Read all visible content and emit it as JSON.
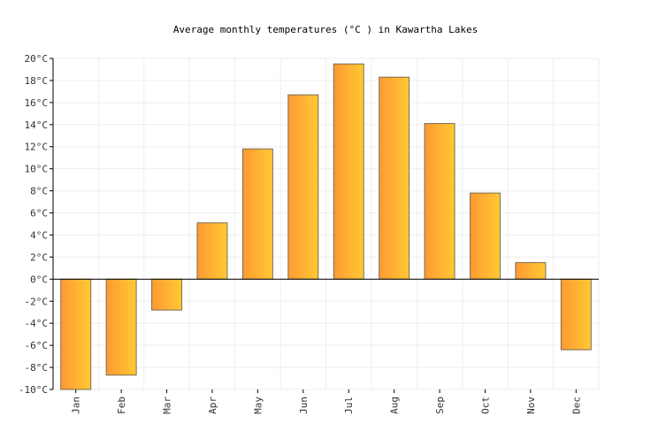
{
  "chart_data": {
    "type": "bar",
    "title": "Average monthly temperatures (°C ) in Kawartha Lakes",
    "xlabel": "",
    "ylabel": "",
    "categories": [
      "Jan",
      "Feb",
      "Mar",
      "Apr",
      "May",
      "Jun",
      "Jul",
      "Aug",
      "Sep",
      "Oct",
      "Nov",
      "Dec"
    ],
    "values": [
      -10.0,
      -8.7,
      -2.8,
      5.1,
      11.8,
      16.7,
      19.5,
      18.3,
      14.1,
      7.8,
      1.5,
      -6.4
    ],
    "ylim": [
      -10,
      20
    ],
    "yticks": [
      -10,
      -8,
      -6,
      -4,
      -2,
      0,
      2,
      4,
      6,
      8,
      10,
      12,
      14,
      16,
      18,
      20
    ],
    "ytick_suffix": "°C",
    "grid": true,
    "legend": "none",
    "colors": {
      "bar_left": "#ff9933",
      "bar_right": "#ffc933",
      "bar_stroke": "#7a6a55",
      "grid": "#eeeeee",
      "axis": "#000000",
      "zero_line": "#000000"
    }
  }
}
